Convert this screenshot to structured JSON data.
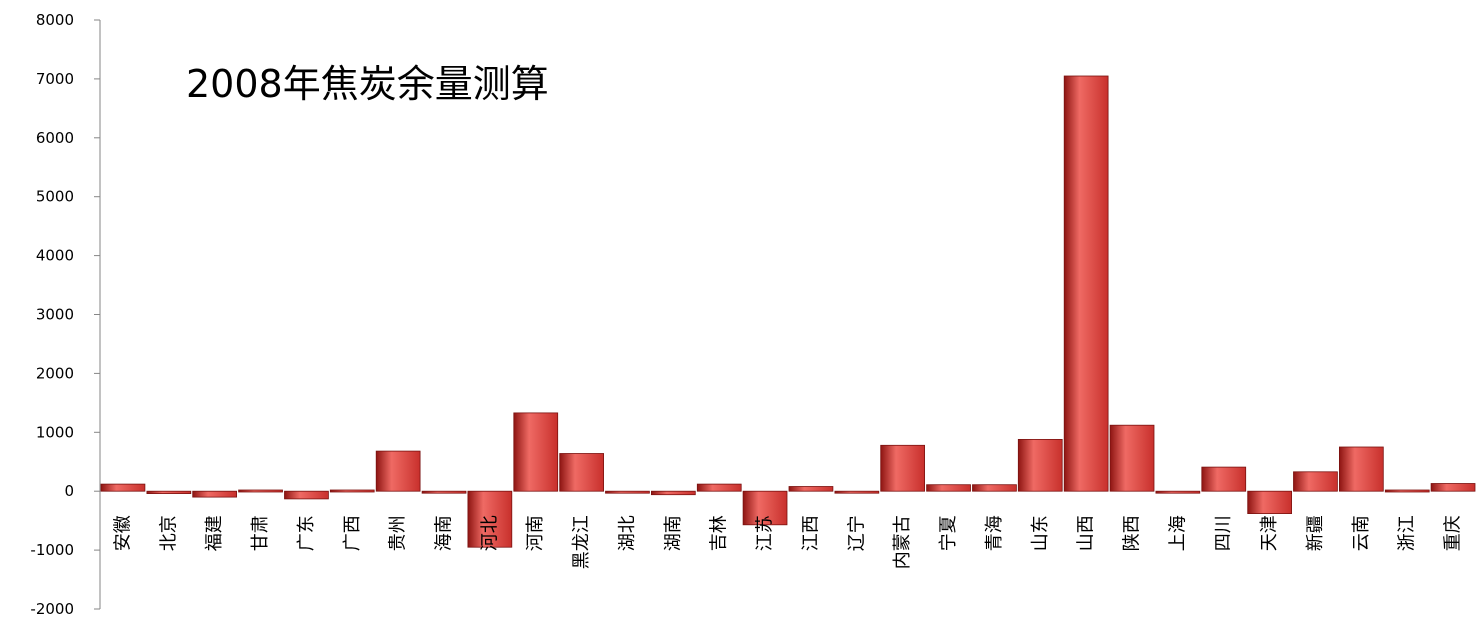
{
  "chart_data": {
    "type": "bar",
    "title": "2008年焦炭余量测算",
    "xlabel": "",
    "ylabel": "",
    "ylim": [
      -2000,
      8000
    ],
    "yticks": [
      -2000,
      -1000,
      0,
      1000,
      2000,
      3000,
      4000,
      5000,
      6000,
      7000,
      8000
    ],
    "grid": false,
    "legend": "none",
    "bar_color": "#c8302c",
    "bar_color_light": "#ef6a64",
    "bar_color_dark": "#8e1512",
    "categories": [
      "安徽",
      "北京",
      "福建",
      "甘肃",
      "广东",
      "广西",
      "贵州",
      "海南",
      "河北",
      "河南",
      "黑龙江",
      "湖北",
      "湖南",
      "吉林",
      "江苏",
      "江西",
      "辽宁",
      "内蒙古",
      "宁夏",
      "青海",
      "山东",
      "山西",
      "陕西",
      "上海",
      "四川",
      "天津",
      "新疆",
      "云南",
      "浙江",
      "重庆"
    ],
    "values": [
      120,
      -40,
      -100,
      20,
      -130,
      20,
      680,
      -20,
      -950,
      1330,
      640,
      -30,
      -60,
      120,
      -570,
      80,
      -30,
      780,
      110,
      110,
      880,
      7050,
      1120,
      -30,
      410,
      -380,
      330,
      750,
      20,
      130
    ]
  }
}
